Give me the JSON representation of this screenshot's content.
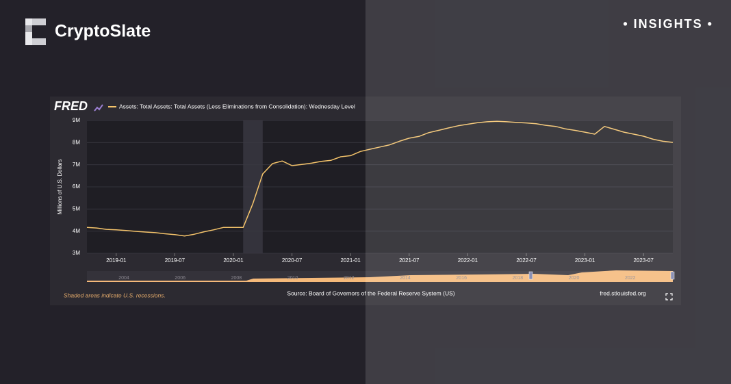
{
  "header": {
    "brand": "CryptoSlate",
    "tag": "• INSIGHTS •"
  },
  "chart_data": {
    "type": "line",
    "logo": "FRED",
    "y_label": "Millions of U.S. Dollars",
    "footnote": "Shaded areas indicate U.S. recessions.",
    "source": "Source: Board of Governors of the Federal Reserve System (US)",
    "site": "fred.stlouisfed.org",
    "x": [
      "2018-10",
      "2018-11",
      "2018-12",
      "2019-01",
      "2019-02",
      "2019-03",
      "2019-04",
      "2019-05",
      "2019-06",
      "2019-07",
      "2019-08",
      "2019-09",
      "2019-10",
      "2019-11",
      "2019-12",
      "2020-01",
      "2020-02",
      "2020-03",
      "2020-04",
      "2020-05",
      "2020-06",
      "2020-07",
      "2020-08",
      "2020-09",
      "2020-10",
      "2020-11",
      "2020-12",
      "2021-01",
      "2021-02",
      "2021-03",
      "2021-04",
      "2021-05",
      "2021-06",
      "2021-07",
      "2021-08",
      "2021-09",
      "2021-10",
      "2021-11",
      "2021-12",
      "2022-01",
      "2022-02",
      "2022-03",
      "2022-04",
      "2022-05",
      "2022-06",
      "2022-07",
      "2022-08",
      "2022-09",
      "2022-10",
      "2022-11",
      "2022-12",
      "2023-01",
      "2023-02",
      "2023-03",
      "2023-04",
      "2023-05",
      "2023-06",
      "2023-07",
      "2023-08",
      "2023-09",
      "2023-10"
    ],
    "series": [
      {
        "name": "Assets: Total Assets: Total Assets (Less Eliminations from Consolidation): Wednesday Level",
        "color": "#f5c46b",
        "values": [
          4170000,
          4140000,
          4080000,
          4060000,
          4030000,
          3990000,
          3960000,
          3930000,
          3880000,
          3840000,
          3780000,
          3860000,
          3970000,
          4060000,
          4170000,
          4170000,
          4170000,
          5250000,
          6580000,
          7050000,
          7170000,
          6960000,
          7010000,
          7070000,
          7150000,
          7200000,
          7360000,
          7410000,
          7600000,
          7700000,
          7800000,
          7900000,
          8060000,
          8200000,
          8280000,
          8450000,
          8550000,
          8660000,
          8760000,
          8830000,
          8900000,
          8940000,
          8960000,
          8940000,
          8910000,
          8890000,
          8850000,
          8780000,
          8730000,
          8620000,
          8550000,
          8470000,
          8380000,
          8730000,
          8600000,
          8470000,
          8380000,
          8290000,
          8150000,
          8060000,
          8010000
        ]
      }
    ],
    "xlim": [
      "2018-10",
      "2023-10"
    ],
    "xticks": [
      "2019-01",
      "2019-07",
      "2020-01",
      "2020-07",
      "2021-01",
      "2021-07",
      "2022-01",
      "2022-07",
      "2023-01",
      "2023-07"
    ],
    "ylim": [
      3000000,
      9000000
    ],
    "yticks": [
      {
        "value": 3000000,
        "label": "3M"
      },
      {
        "value": 4000000,
        "label": "4M"
      },
      {
        "value": 5000000,
        "label": "5M"
      },
      {
        "value": 6000000,
        "label": "6M"
      },
      {
        "value": 7000000,
        "label": "7M"
      },
      {
        "value": 8000000,
        "label": "8M"
      },
      {
        "value": 9000000,
        "label": "9M"
      }
    ],
    "grid": true,
    "recessions": [
      [
        "2020-02",
        "2020-04"
      ]
    ],
    "navigator_labels": [
      "2004",
      "2006",
      "2008",
      "2010",
      "2012",
      "2014",
      "2016",
      "2018",
      "2020",
      "2022"
    ]
  }
}
